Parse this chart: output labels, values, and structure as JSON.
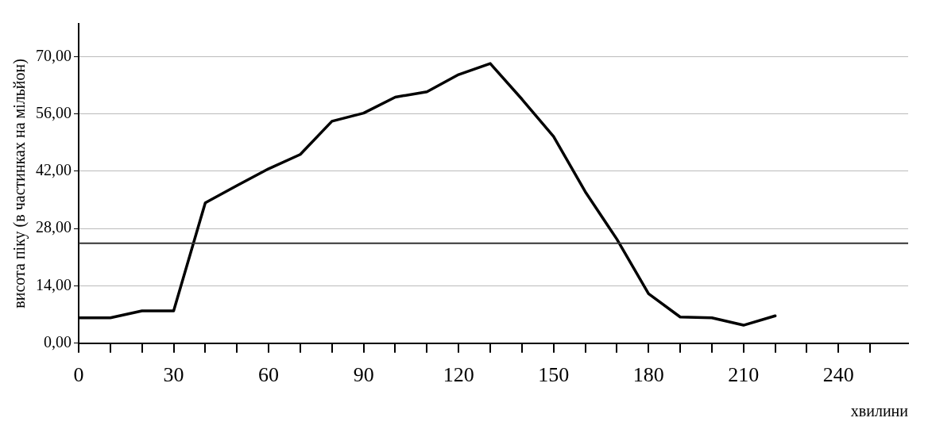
{
  "chart_data": {
    "type": "line",
    "xlabel": "хвилини",
    "ylabel": "висота піку (в частинках на мільйон)",
    "x": [
      0,
      10,
      20,
      30,
      40,
      50,
      60,
      70,
      80,
      90,
      100,
      110,
      120,
      130,
      140,
      150,
      160,
      170,
      180,
      190,
      200,
      210,
      220
    ],
    "series": [
      {
        "color": "#000000",
        "values": [
          6.2,
          6.2,
          7.9,
          7.9,
          34.3,
          38.5,
          42.6,
          46.1,
          54.2,
          56.2,
          60.1,
          61.4,
          65.6,
          68.3,
          59.6,
          50.5,
          37,
          25.4,
          12.1,
          6.4,
          6.2,
          4.4,
          6.7
        ]
      }
    ],
    "xlim": [
      0,
      262
    ],
    "ylim": [
      0,
      78
    ],
    "xticks": [
      0,
      {
        "value": 10,
        "label": null
      },
      {
        "value": 20,
        "label": null
      },
      30,
      {
        "value": 40,
        "label": null
      },
      {
        "value": 50,
        "label": null
      },
      60,
      {
        "value": 70,
        "label": null
      },
      {
        "value": 80,
        "label": null
      },
      90,
      {
        "value": 100,
        "label": null
      },
      {
        "value": 110,
        "label": null
      },
      120,
      {
        "value": 130,
        "label": null
      },
      {
        "value": 140,
        "label": null
      },
      150,
      {
        "value": 160,
        "label": null
      },
      {
        "value": 170,
        "label": null
      },
      180,
      {
        "value": 190,
        "label": null
      },
      {
        "value": 200,
        "label": null
      },
      210,
      {
        "value": 220,
        "label": null
      },
      {
        "value": 230,
        "label": null
      },
      240,
      {
        "value": 250,
        "label": null
      }
    ],
    "yticks": [
      {
        "value": 0,
        "label": "0,00"
      },
      {
        "value": 14,
        "label": "14,00"
      },
      {
        "value": 28,
        "label": "28,00"
      },
      {
        "value": 42,
        "label": "42,00"
      },
      {
        "value": 56,
        "label": "56,00"
      },
      {
        "value": 70,
        "label": "70,00"
      }
    ],
    "ref_lines": [
      {
        "axis": "y",
        "value": 24.4,
        "color": "#333333"
      }
    ],
    "grid": "y",
    "marker": "none",
    "line_style": "solid",
    "legend": false
  }
}
